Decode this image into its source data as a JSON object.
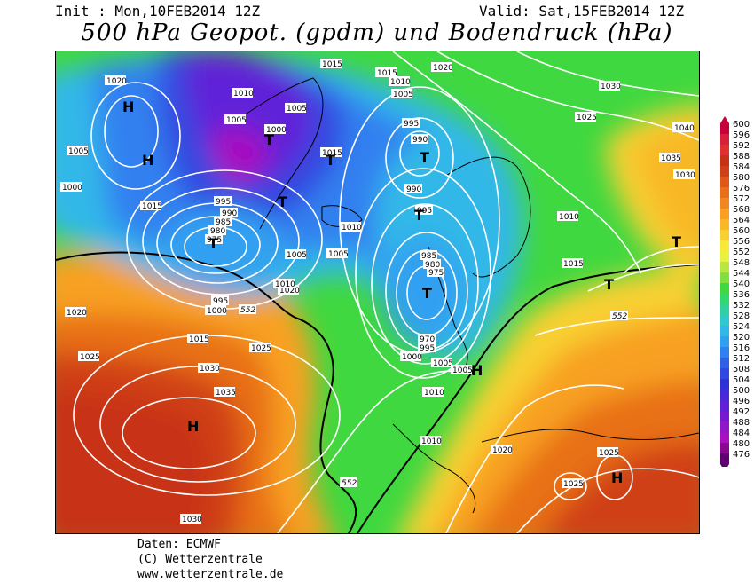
{
  "header": {
    "init": "Init : Mon,10FEB2014 12Z",
    "valid": "Valid: Sat,15FEB2014 12Z",
    "title": "500 hPa Geopot. (gpdm) und Bodendruck (hPa)"
  },
  "footer": {
    "line1": "Daten: ECMWF",
    "line2": "(C) Wetterzentrale",
    "line3": "www.wetterzentrale.de"
  },
  "legend": {
    "levels": [
      "600",
      "596",
      "592",
      "588",
      "584",
      "580",
      "576",
      "572",
      "568",
      "564",
      "560",
      "556",
      "552",
      "548",
      "544",
      "540",
      "536",
      "532",
      "528",
      "524",
      "520",
      "516",
      "512",
      "508",
      "504",
      "500",
      "496",
      "492",
      "488",
      "484",
      "480",
      "476"
    ],
    "colors": [
      "#c8003c",
      "#d8203a",
      "#e0302f",
      "#c83018",
      "#d04018",
      "#e05818",
      "#e87018",
      "#f08820",
      "#f8a020",
      "#f8b828",
      "#f8d030",
      "#f8e838",
      "#e8f040",
      "#b8e840",
      "#80e040",
      "#40d840",
      "#30d870",
      "#30d0a0",
      "#30c8d0",
      "#30b8e8",
      "#30a0f0",
      "#3080f0",
      "#3060e8",
      "#3048e0",
      "#3030d8",
      "#4828d8",
      "#6020d8",
      "#7818d0",
      "#9018c8",
      "#a810c0",
      "#880890",
      "#600070"
    ]
  },
  "map": {
    "high_label": "H",
    "low_label": "T",
    "pressure_labels": [
      "1020",
      "1015",
      "1010",
      "1005",
      "1000",
      "995",
      "990",
      "985",
      "980",
      "975",
      "970",
      "1025",
      "1030",
      "1035",
      "1040"
    ],
    "height_labels": [
      "552"
    ]
  }
}
